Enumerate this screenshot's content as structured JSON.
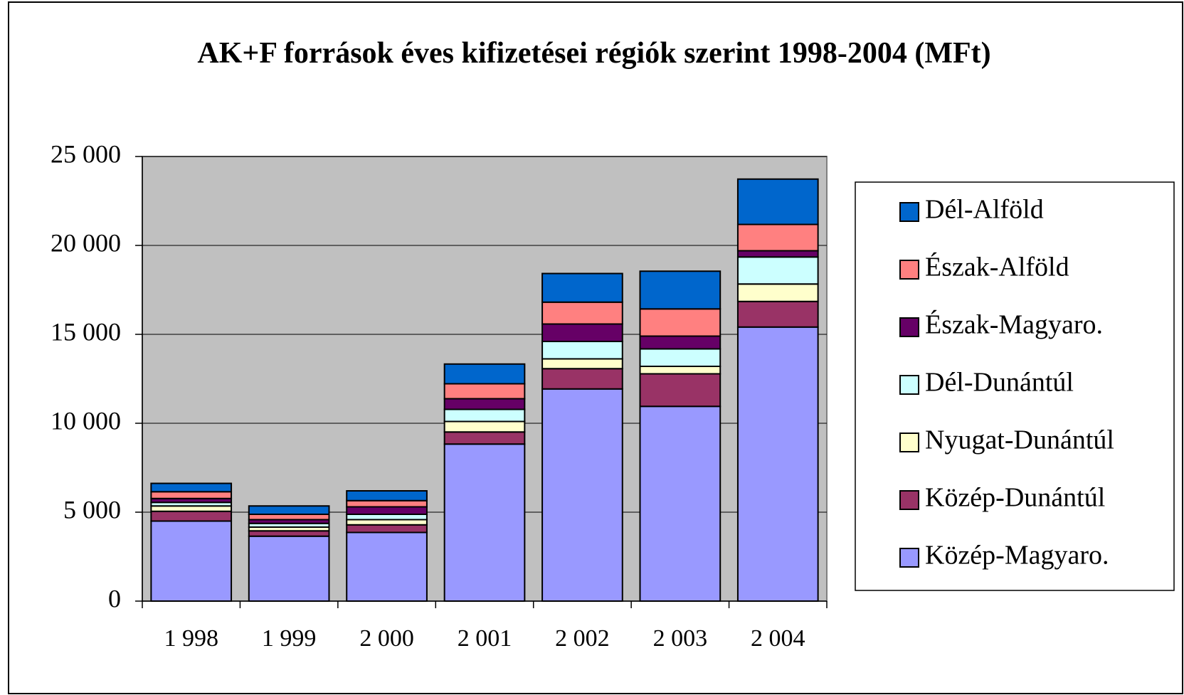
{
  "chart_data": {
    "type": "stacked_bar",
    "title": "AK+F források éves kifizetései régiók szerint 1998-2004 (MFt)",
    "categories": [
      "1 998",
      "1 999",
      "2 000",
      "2 001",
      "2 002",
      "2 003",
      "2 004"
    ],
    "series": [
      {
        "name": "Közép-Magyaro.",
        "color": "#9999ff",
        "values": [
          4500,
          3650,
          3860,
          8830,
          11930,
          10950,
          15410
        ]
      },
      {
        "name": "Közép-Dunántúl",
        "color": "#993366",
        "values": [
          550,
          300,
          430,
          680,
          1140,
          1830,
          1440
        ]
      },
      {
        "name": "Nyugat-Dunántúl",
        "color": "#ffffcc",
        "values": [
          300,
          210,
          290,
          590,
          550,
          420,
          980
        ]
      },
      {
        "name": "Dél-Dunántúl",
        "color": "#ccffff",
        "values": [
          200,
          210,
          300,
          680,
          980,
          980,
          1520
        ]
      },
      {
        "name": "Észak-Magyaro.",
        "color": "#660066",
        "values": [
          220,
          210,
          420,
          600,
          980,
          720,
          350
        ]
      },
      {
        "name": "Észak-Alföld",
        "color": "#ff8080",
        "values": [
          380,
          300,
          350,
          840,
          1230,
          1530,
          1480
        ]
      },
      {
        "name": "Dél-Alföld",
        "color": "#0066cc",
        "values": [
          470,
          470,
          550,
          1110,
          1610,
          2120,
          2550
        ]
      }
    ],
    "ylim": [
      0,
      25000
    ],
    "yticks": [
      0,
      {
        "value": 5000,
        "label": "5 000"
      },
      {
        "value": 10000,
        "label": "10 000"
      },
      {
        "value": 15000,
        "label": "15 000"
      },
      {
        "value": 20000,
        "label": "20 000"
      },
      {
        "value": 25000,
        "label": "25 000"
      }
    ],
    "grid": true,
    "legend": "right",
    "plot_background": "#c0c0c0"
  }
}
